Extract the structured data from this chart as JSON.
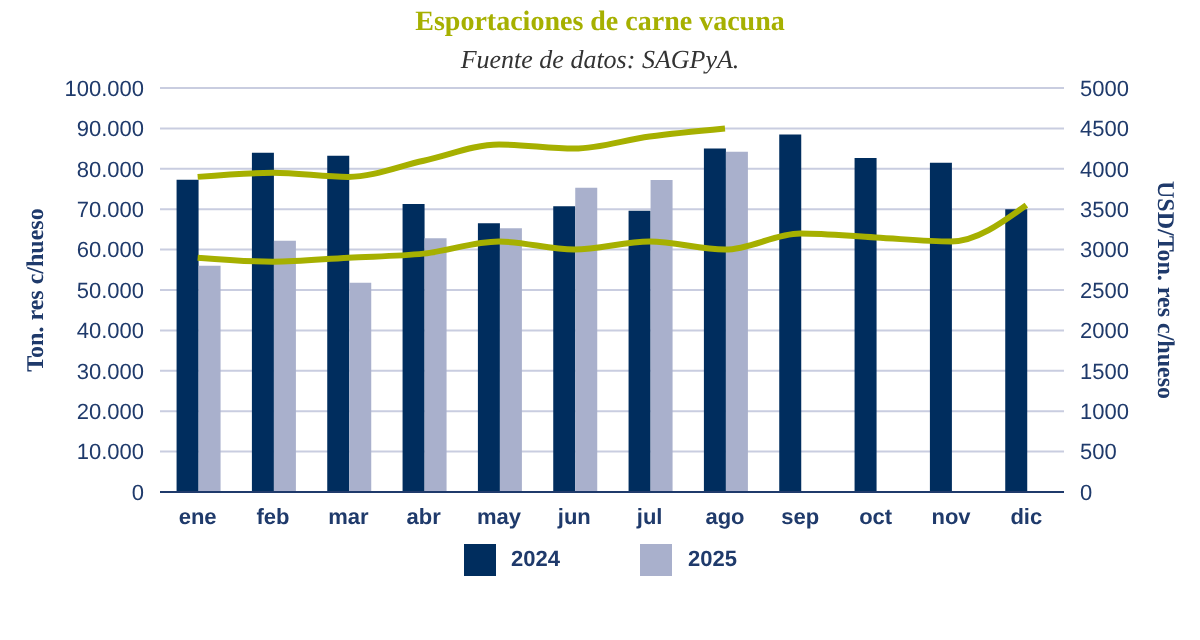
{
  "chart_data": {
    "type": "bar",
    "title": "Esportaciones de carne vacuna",
    "subtitle": "Fuente de datos: SAGPyA.",
    "categories": [
      "ene",
      "feb",
      "mar",
      "abr",
      "may",
      "jun",
      "jul",
      "ago",
      "sep",
      "oct",
      "nov",
      "dic"
    ],
    "series": [
      {
        "name": "2024",
        "color": "#002d5e",
        "values": [
          77300,
          84000,
          83200,
          71300,
          66500,
          70700,
          69600,
          85000,
          88500,
          82700,
          81500,
          70000
        ]
      },
      {
        "name": "2025",
        "color": "#a9b0cc",
        "values": [
          56000,
          62200,
          51800,
          62800,
          65300,
          75300,
          77200,
          84200,
          null,
          null,
          null,
          null
        ]
      },
      {
        "type": "line",
        "axis": "y2",
        "color": "#a6b000",
        "values": [
          3900,
          3950,
          3900,
          4100,
          4300,
          4250,
          4400,
          4500,
          null,
          null,
          null,
          null
        ]
      },
      {
        "type": "line",
        "axis": "y2",
        "color": "#a6b000",
        "values": [
          2900,
          2850,
          2900,
          2950,
          3100,
          3000,
          3100,
          3000,
          3200,
          3150,
          3100,
          3550
        ]
      }
    ],
    "ylabel": "Ton. res c/hueso",
    "y2label": "USD/Ton. res c/hueso",
    "ylim": [
      0,
      100000
    ],
    "yticks": [
      {
        "value": 0,
        "label": "0"
      },
      {
        "value": 10000,
        "label": "10.000"
      },
      {
        "value": 20000,
        "label": "20.000"
      },
      {
        "value": 30000,
        "label": "30.000"
      },
      {
        "value": 40000,
        "label": "40.000"
      },
      {
        "value": 50000,
        "label": "50.000"
      },
      {
        "value": 60000,
        "label": "60.000"
      },
      {
        "value": 70000,
        "label": "70.000"
      },
      {
        "value": 80000,
        "label": "80.000"
      },
      {
        "value": 90000,
        "label": "90.000"
      },
      {
        "value": 100000,
        "label": "100.000"
      }
    ],
    "y2lim": [
      0,
      5000
    ],
    "y2ticks": [
      0,
      500,
      1000,
      1500,
      2000,
      2500,
      3000,
      3500,
      4000,
      4500,
      5000
    ],
    "grid": "y",
    "legend": "bottom",
    "marker": "none",
    "line_style": "solid"
  }
}
